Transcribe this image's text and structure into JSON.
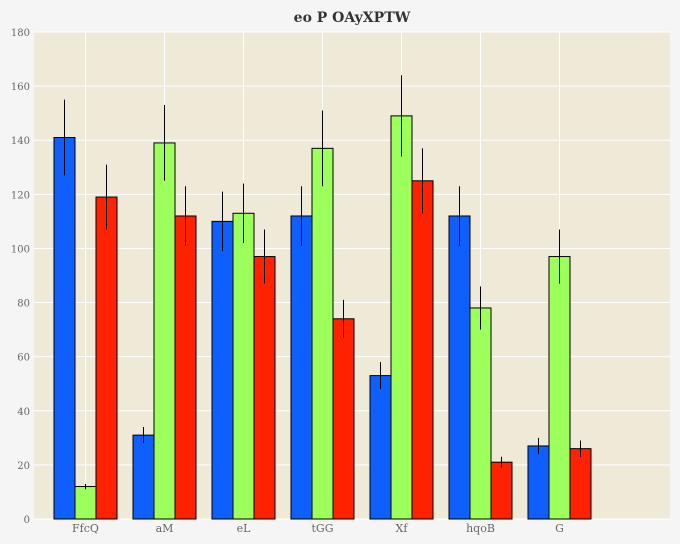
{
  "chart_data": {
    "type": "bar",
    "title": "eo  P OAyXPTW",
    "xlabel": "",
    "ylabel": "",
    "categories": [
      "FfcQ",
      "aM",
      "eL",
      "tGG",
      "Xf",
      "hqoB",
      "G"
    ],
    "ylim": [
      0,
      180
    ],
    "yticks": [
      0,
      20,
      40,
      60,
      80,
      100,
      120,
      140,
      160,
      180
    ],
    "grid": true,
    "legend": "none",
    "series": [
      {
        "color": "#0f5fff",
        "values": [
          141,
          31,
          110,
          112,
          53,
          112,
          27
        ],
        "errors": [
          14,
          3,
          11,
          11,
          5,
          11,
          3
        ]
      },
      {
        "color": "#9dff5c",
        "values": [
          12,
          139,
          113,
          137,
          149,
          78,
          97
        ],
        "errors": [
          1,
          14,
          11,
          14,
          15,
          8,
          10
        ]
      },
      {
        "color": "#ff2200",
        "values": [
          119,
          112,
          97,
          74,
          125,
          21,
          26
        ],
        "errors": [
          12,
          11,
          10,
          7,
          12,
          2,
          3
        ]
      }
    ],
    "colors": {
      "plot_background": "#efe9d7",
      "grid": "#ffffff"
    }
  }
}
